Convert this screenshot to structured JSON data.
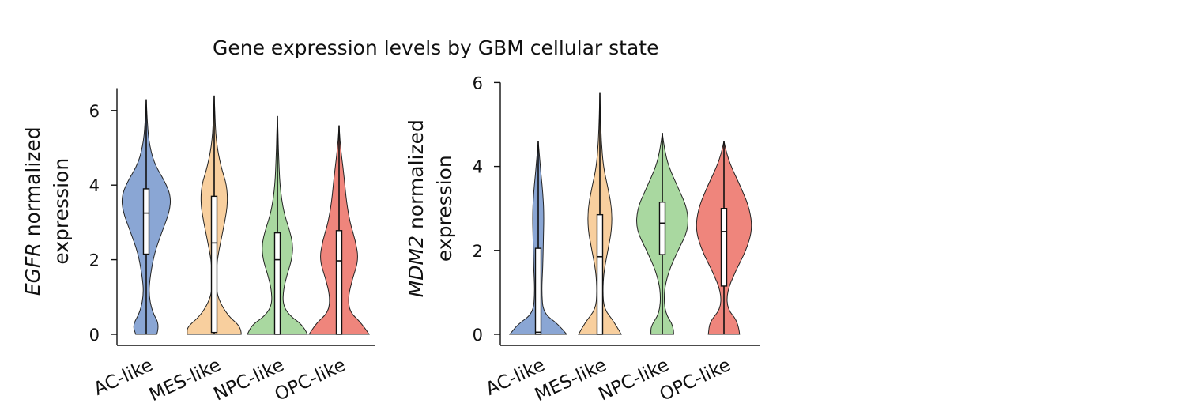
{
  "figure_title": "Gene expression levels by GBM cellular state",
  "chart_data": [
    {
      "type": "violin",
      "gene": "EGFR",
      "ylabel_italic": "EGFR",
      "ylabel_rest": " normalized",
      "ylabel_line2": "expression",
      "ylim": [
        0,
        6.6
      ],
      "yticks": [
        "0",
        "2",
        "4",
        "6"
      ],
      "categories": [
        "AC-like",
        "MES-like",
        "NPC-like",
        "OPC-like"
      ],
      "colors": [
        "#8aa6d4",
        "#f8cf9e",
        "#a9d8a0",
        "#ef857c"
      ],
      "series": [
        {
          "category": "AC-like",
          "min": 0,
          "max": 6.3,
          "q1": 2.15,
          "median": 3.25,
          "q3": 3.9,
          "profile": [
            [
              0,
              0.35
            ],
            [
              0.25,
              0.45
            ],
            [
              0.6,
              0.2
            ],
            [
              1.1,
              0.08
            ],
            [
              1.6,
              0.14
            ],
            [
              2.2,
              0.28
            ],
            [
              2.8,
              0.55
            ],
            [
              3.3,
              0.78
            ],
            [
              3.7,
              0.82
            ],
            [
              4.1,
              0.62
            ],
            [
              4.6,
              0.25
            ],
            [
              5.2,
              0.08
            ],
            [
              5.8,
              0.03
            ],
            [
              6.3,
              0.0
            ]
          ]
        },
        {
          "category": "MES-like",
          "min": 0,
          "max": 6.4,
          "q1": 0.05,
          "median": 2.45,
          "q3": 3.7,
          "profile": [
            [
              0,
              0.9
            ],
            [
              0.2,
              0.9
            ],
            [
              0.5,
              0.45
            ],
            [
              1.0,
              0.1
            ],
            [
              1.5,
              0.06
            ],
            [
              2.0,
              0.1
            ],
            [
              2.5,
              0.22
            ],
            [
              3.0,
              0.35
            ],
            [
              3.5,
              0.45
            ],
            [
              4.0,
              0.42
            ],
            [
              4.5,
              0.22
            ],
            [
              5.2,
              0.06
            ],
            [
              6.0,
              0.02
            ],
            [
              6.4,
              0.0
            ]
          ]
        },
        {
          "category": "NPC-like",
          "min": 0,
          "max": 5.85,
          "q1": 0.0,
          "median": 2.0,
          "q3": 2.72,
          "profile": [
            [
              0,
              1.0
            ],
            [
              0.25,
              0.85
            ],
            [
              0.5,
              0.4
            ],
            [
              0.8,
              0.18
            ],
            [
              1.2,
              0.2
            ],
            [
              1.6,
              0.32
            ],
            [
              2.0,
              0.48
            ],
            [
              2.4,
              0.52
            ],
            [
              2.8,
              0.4
            ],
            [
              3.3,
              0.2
            ],
            [
              4.0,
              0.08
            ],
            [
              4.8,
              0.04
            ],
            [
              5.4,
              0.02
            ],
            [
              5.85,
              0.0
            ]
          ]
        },
        {
          "category": "OPC-like",
          "min": 0,
          "max": 5.6,
          "q1": 0.0,
          "median": 1.97,
          "q3": 2.78,
          "profile": [
            [
              0,
              1.0
            ],
            [
              0.3,
              0.75
            ],
            [
              0.6,
              0.35
            ],
            [
              1.0,
              0.3
            ],
            [
              1.5,
              0.45
            ],
            [
              2.0,
              0.65
            ],
            [
              2.5,
              0.55
            ],
            [
              3.0,
              0.36
            ],
            [
              3.6,
              0.24
            ],
            [
              4.2,
              0.17
            ],
            [
              4.8,
              0.08
            ],
            [
              5.2,
              0.03
            ],
            [
              5.6,
              0.0
            ]
          ]
        }
      ]
    },
    {
      "type": "violin",
      "gene": "MDM2",
      "ylabel_italic": "MDM2",
      "ylabel_rest": " normalized",
      "ylabel_line2": "expression",
      "ylim": [
        0,
        6.0
      ],
      "yticks": [
        "0",
        "2",
        "4",
        "6"
      ],
      "categories": [
        "AC-like",
        "MES-like",
        "NPC-like",
        "OPC-like"
      ],
      "colors": [
        "#8aa6d4",
        "#f8cf9e",
        "#a9d8a0",
        "#ef857c"
      ],
      "series": [
        {
          "category": "AC-like",
          "min": 0,
          "max": 4.6,
          "q1": 0.0,
          "median": 0.05,
          "q3": 2.05,
          "profile": [
            [
              0,
              1.0
            ],
            [
              0.25,
              0.7
            ],
            [
              0.5,
              0.18
            ],
            [
              1.0,
              0.12
            ],
            [
              1.6,
              0.16
            ],
            [
              2.2,
              0.18
            ],
            [
              2.8,
              0.2
            ],
            [
              3.3,
              0.17
            ],
            [
              3.8,
              0.1
            ],
            [
              4.2,
              0.05
            ],
            [
              4.6,
              0.0
            ]
          ]
        },
        {
          "category": "MES-like",
          "min": 0,
          "max": 5.75,
          "q1": 0.0,
          "median": 1.85,
          "q3": 2.85,
          "profile": [
            [
              0,
              0.75
            ],
            [
              0.3,
              0.5
            ],
            [
              0.6,
              0.15
            ],
            [
              1.0,
              0.1
            ],
            [
              1.5,
              0.14
            ],
            [
              2.0,
              0.28
            ],
            [
              2.5,
              0.42
            ],
            [
              3.0,
              0.42
            ],
            [
              3.5,
              0.28
            ],
            [
              4.0,
              0.12
            ],
            [
              4.6,
              0.05
            ],
            [
              5.2,
              0.02
            ],
            [
              5.75,
              0.0
            ]
          ]
        },
        {
          "category": "NPC-like",
          "min": 0,
          "max": 4.8,
          "q1": 1.9,
          "median": 2.65,
          "q3": 3.15,
          "profile": [
            [
              0,
              0.4
            ],
            [
              0.2,
              0.4
            ],
            [
              0.5,
              0.1
            ],
            [
              1.0,
              0.05
            ],
            [
              1.5,
              0.22
            ],
            [
              2.0,
              0.55
            ],
            [
              2.5,
              0.92
            ],
            [
              3.0,
              0.88
            ],
            [
              3.5,
              0.55
            ],
            [
              4.0,
              0.22
            ],
            [
              4.4,
              0.08
            ],
            [
              4.8,
              0.0
            ]
          ]
        },
        {
          "category": "OPC-like",
          "min": 0,
          "max": 4.6,
          "q1": 1.15,
          "median": 2.45,
          "q3": 3.0,
          "profile": [
            [
              0,
              0.55
            ],
            [
              0.3,
              0.5
            ],
            [
              0.6,
              0.12
            ],
            [
              1.0,
              0.1
            ],
            [
              1.5,
              0.4
            ],
            [
              2.0,
              0.78
            ],
            [
              2.5,
              1.0
            ],
            [
              3.0,
              0.9
            ],
            [
              3.5,
              0.6
            ],
            [
              4.0,
              0.25
            ],
            [
              4.3,
              0.1
            ],
            [
              4.6,
              0.0
            ]
          ]
        }
      ]
    }
  ]
}
